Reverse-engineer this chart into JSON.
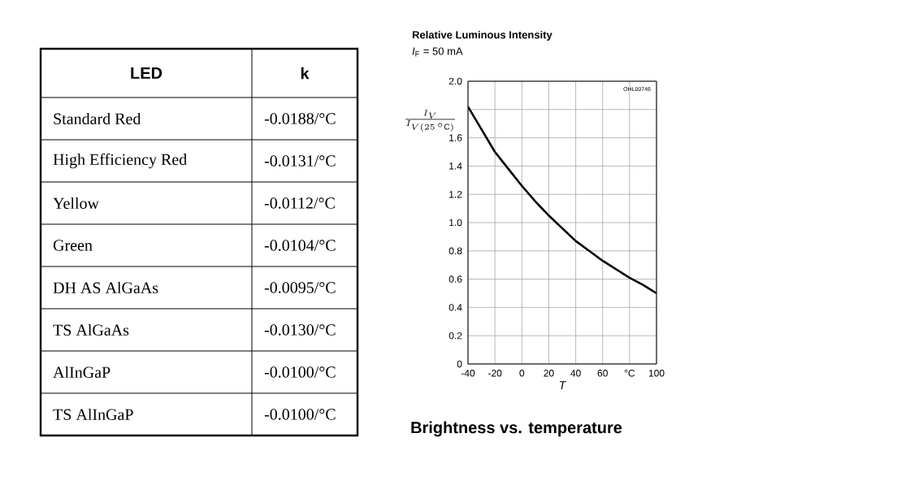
{
  "chart_data": [
    {
      "type": "other",
      "annotations": [
        "LED",
        "k",
        "Standard Red",
        "-0.0188/°C",
        "High Efficiency Red",
        "-0.0131/°C",
        "Yellow",
        "-0.0112/°C",
        "Green",
        "-0.0104/°C",
        "DH AS AlGaAs",
        "-0.0095/°C",
        "TS AlGaAs",
        "-0.0130/°C",
        "AlInGaP",
        "-0.0100/°C",
        "TS AlInGaP",
        "-0.0100/°C"
      ]
    },
    {
      "type": "line",
      "title": "Relative Luminous Intensity",
      "subtitle": "*I*$_{F}$ = 50 mA",
      "ylabel": "\\frac{I_{V}}{I_{V(25\\,^{\\circ}\\mathrm{C})}}",
      "xlabel": "T",
      "x": [
        -40,
        -30,
        -20,
        -10,
        0,
        10,
        20,
        30,
        40,
        50,
        60,
        70,
        80,
        90,
        100
      ],
      "series": [
        {
          "color": "#000000",
          "values": [
            1.82,
            1.66,
            1.5,
            1.38,
            1.26,
            1.15,
            1.05,
            0.96,
            0.87,
            0.8,
            0.73,
            0.67,
            0.61,
            0.56,
            0.5
          ]
        }
      ],
      "xlim": [
        -40,
        100
      ],
      "ylim": [
        0,
        2
      ],
      "xticks": [
        -40,
        -20,
        0,
        20,
        40,
        60,
        {
          "value": 80,
          "label": "°C"
        },
        100
      ],
      "yticks": [
        0,
        0.2,
        0.4,
        0.6,
        0.8,
        {
          "value": 1,
          "label": "1.0"
        },
        1.2,
        1.4,
        1.6,
        {
          "value": 1.8,
          "label": null
        },
        {
          "value": 2,
          "label": "2.0"
        }
      ],
      "grid": true,
      "annotations": [
        "OHL00746",
        "Brightness vs. temperature"
      ]
    }
  ]
}
